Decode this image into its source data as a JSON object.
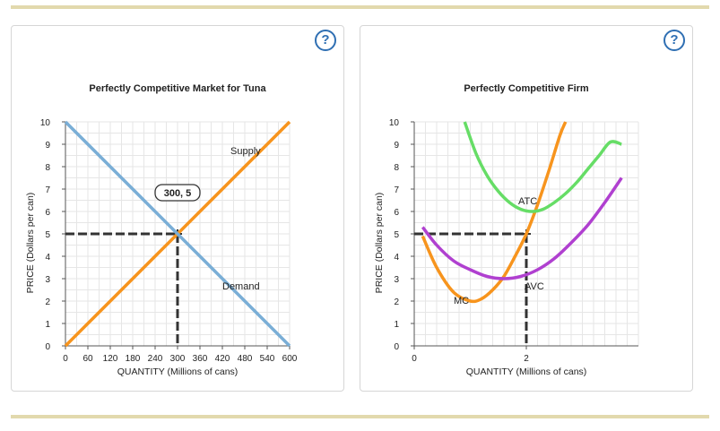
{
  "help_label": "?",
  "chart_data": [
    {
      "type": "line",
      "title": "Perfectly Competitive Market for Tuna",
      "xlabel": "QUANTITY (Millions of cans)",
      "ylabel": "PRICE (Dollars per can)",
      "xlim": [
        0,
        600
      ],
      "ylim": [
        0,
        10
      ],
      "x_ticks": [
        "0",
        "60",
        "120",
        "180",
        "240",
        "300",
        "360",
        "420",
        "480",
        "540",
        "600"
      ],
      "y_ticks": [
        "0",
        "1",
        "2",
        "3",
        "4",
        "5",
        "6",
        "7",
        "8",
        "9",
        "10"
      ],
      "grid": true,
      "series": [
        {
          "name": "Supply",
          "color": "#f7941d",
          "x": [
            0,
            600
          ],
          "y": [
            0,
            10
          ]
        },
        {
          "name": "Demand",
          "color": "#7aaed6",
          "x": [
            0,
            600
          ],
          "y": [
            10,
            0
          ]
        }
      ],
      "annotations": [
        {
          "text": "300, 5",
          "x": 300,
          "y": 5
        }
      ],
      "guide_lines": {
        "x": 300,
        "y": 5,
        "color": "#333333"
      }
    },
    {
      "type": "line",
      "title": "Perfectly Competitive Firm",
      "xlabel": "QUANTITY (Millions of cans)",
      "ylabel": "PRICE (Dollars per can)",
      "xlim": [
        0,
        4
      ],
      "ylim": [
        0,
        10
      ],
      "x_ticks": [
        "0",
        "2"
      ],
      "y_ticks": [
        "0",
        "1",
        "2",
        "3",
        "4",
        "5",
        "6",
        "7",
        "8",
        "9",
        "10"
      ],
      "grid": true,
      "series": [
        {
          "name": "MC",
          "color": "#f7941d",
          "x": [
            0.15,
            0.4,
            0.7,
            1.0,
            1.2,
            1.4,
            1.6,
            1.8,
            2.0,
            2.2,
            2.4,
            2.6,
            2.7
          ],
          "y": [
            4.9,
            3.5,
            2.4,
            2.0,
            2.1,
            2.5,
            3.1,
            4.0,
            5.0,
            6.3,
            7.8,
            9.4,
            10.0
          ]
        },
        {
          "name": "ATC",
          "color": "#66dd66",
          "x": [
            0.9,
            1.1,
            1.3,
            1.5,
            1.7,
            1.9,
            2.1,
            2.3,
            2.5,
            2.7,
            2.9,
            3.1,
            3.3,
            3.5,
            3.7
          ],
          "y": [
            10.0,
            8.6,
            7.6,
            6.9,
            6.4,
            6.1,
            6.0,
            6.1,
            6.4,
            6.8,
            7.3,
            7.9,
            8.5,
            9.1,
            9.0
          ]
        },
        {
          "name": "AVC",
          "color": "#b040d0",
          "x": [
            0.15,
            0.4,
            0.7,
            1.0,
            1.3,
            1.6,
            1.9,
            2.2,
            2.5,
            2.8,
            3.1,
            3.4,
            3.7
          ],
          "y": [
            5.3,
            4.5,
            3.8,
            3.4,
            3.1,
            3.0,
            3.1,
            3.4,
            3.9,
            4.6,
            5.4,
            6.4,
            7.5
          ]
        }
      ],
      "guide_lines": {
        "x": 2,
        "y": 5,
        "color": "#333333"
      }
    }
  ]
}
